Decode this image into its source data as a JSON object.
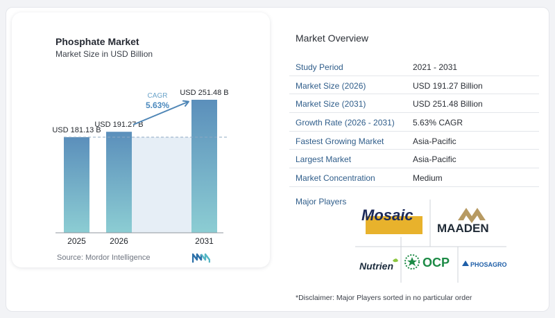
{
  "chart": {
    "title": "Phosphate Market",
    "subtitle": "Market Size in USD Billion",
    "source": "Source:  Mordor Intelligence",
    "cagr_label": "CAGR",
    "cagr_value": "5.63%"
  },
  "chart_data": {
    "type": "bar",
    "title": "Phosphate Market",
    "subtitle": "Market Size in USD Billion",
    "categories": [
      "2025",
      "2026",
      "2031"
    ],
    "values": [
      181.13,
      191.27,
      251.48
    ],
    "data_labels": [
      "USD 181.13 B",
      "USD 191.27 B",
      "USD 251.48 B"
    ],
    "ylabel": "",
    "xlabel": "",
    "grid": false,
    "annotations": [
      "CAGR",
      "5.63%"
    ],
    "colors": {
      "bar_top": "#5b8fbb",
      "bar_bottom": "#8ccdd3",
      "shade": "#e6eef6",
      "arrow": "#4f86b6",
      "cagr_label": "#6aa3c9",
      "cagr_value": "#4a88bd"
    }
  },
  "overview": {
    "title": "Market Overview",
    "rows": [
      {
        "label": "Study Period",
        "value": "2021 - 2031"
      },
      {
        "label": "Market Size (2026)",
        "value": "USD 191.27 Billion"
      },
      {
        "label": "Market Size (2031)",
        "value": "USD 251.48 Billion"
      },
      {
        "label": "Growth Rate (2026 - 2031)",
        "value": "5.63% CAGR"
      },
      {
        "label": "Fastest Growing Market",
        "value": "Asia-Pacific"
      },
      {
        "label": "Largest Market",
        "value": "Asia-Pacific"
      },
      {
        "label": "Market Concentration",
        "value": "Medium"
      }
    ],
    "label_color": "#2f5d8a"
  },
  "players": {
    "title": "Major Players",
    "logos": [
      {
        "name": "Mosaic",
        "text": "Mosaic",
        "color": "#1c2a59",
        "accent": "#e8b22c"
      },
      {
        "name": "Maaden",
        "text": "MAADEN",
        "color": "#1f2a36",
        "accent": "#b79a62"
      },
      {
        "name": "Nutrien",
        "text": "Nutrien",
        "color": "#1b2b3c",
        "accent": "#8cc63f"
      },
      {
        "name": "OCP",
        "text": "OCP",
        "color": "#1c8a45"
      },
      {
        "name": "PhosAgro",
        "text": "PHOSAGRO",
        "color": "#1f5fa8"
      }
    ],
    "disclaimer": "*Disclaimer: Major Players sorted in no particular order"
  }
}
